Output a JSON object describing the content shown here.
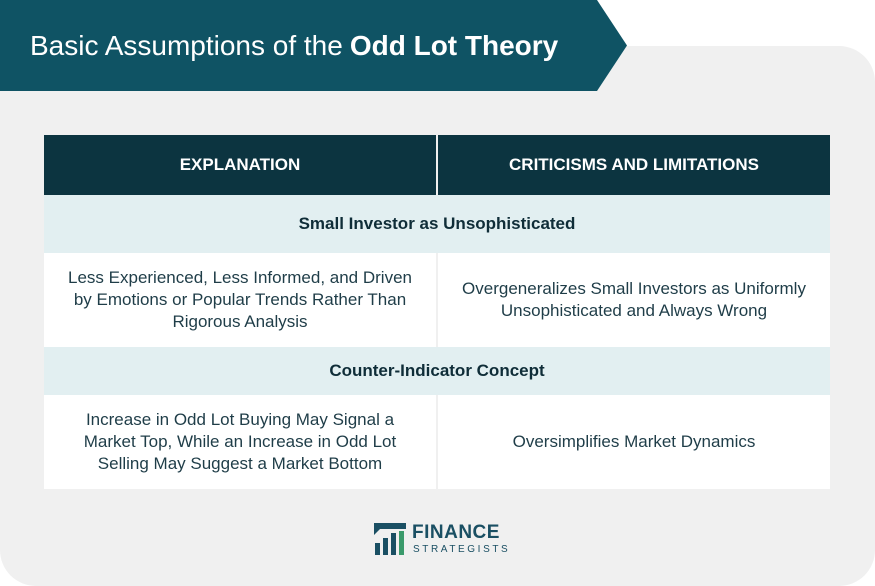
{
  "title": {
    "regular": "Basic Assumptions of the",
    "bold": "Odd Lot Theory"
  },
  "table": {
    "headers": [
      "EXPLANATION",
      "CRITICISMS AND LIMITATIONS"
    ],
    "sections": [
      {
        "heading": "Small Investor as Unsophisticated",
        "explanation": "Less Experienced, Less Informed, and Driven by Emotions or Popular Trends Rather Than Rigorous Analysis",
        "criticism": "Overgeneralizes Small Investors as Uniformly Unsophisticated and Always Wrong"
      },
      {
        "heading": "Counter-Indicator Concept",
        "explanation": "Increase in Odd Lot Buying May Signal a Market Top, While an Increase in Odd Lot Selling May Suggest a Market Bottom",
        "criticism": "Oversimplifies Market Dynamics"
      }
    ]
  },
  "logo": {
    "name": "FINANCE",
    "sub": "STRATEGISTS"
  },
  "colors": {
    "banner": "#0f5364",
    "header_bg": "#0c3440",
    "section_bg": "#e2eff1",
    "card_bg": "#f0f0f0"
  }
}
